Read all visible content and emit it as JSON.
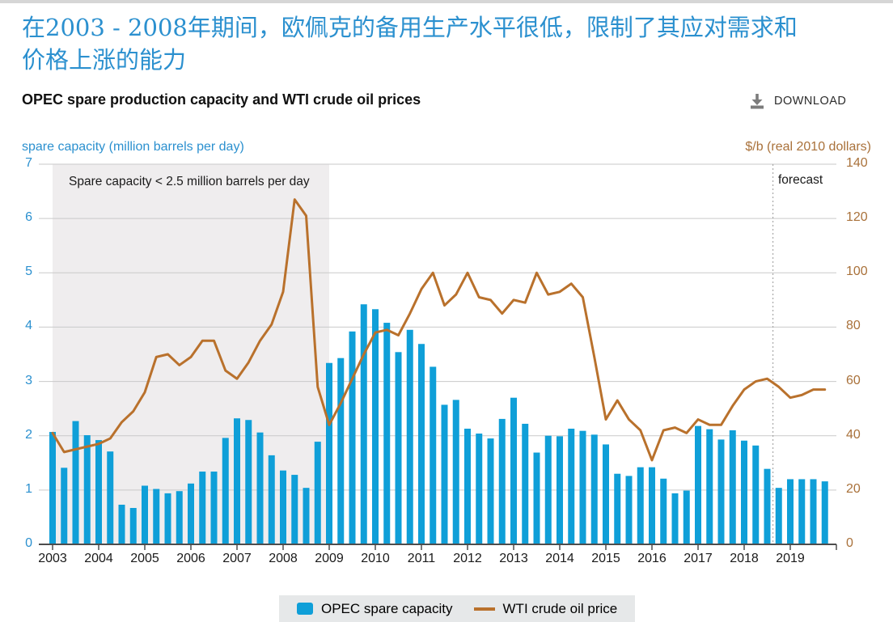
{
  "page": {
    "headline_line1": "在2003 - 2008年期间，欧佩克的备用生产水平很低，限制了其应对需求和",
    "headline_line2": "价格上涨的能力"
  },
  "chart_header": {
    "title": "OPEC spare production capacity and WTI crude oil prices",
    "download_label": "DOWNLOAD"
  },
  "annotations": {
    "shaded_label": "Spare capacity < 2.5 million barrels per day",
    "forecast_label": "forecast"
  },
  "legend": {
    "bar_label": "OPEC spare capacity",
    "line_label": "WTI crude oil price"
  },
  "colors": {
    "bar": "#0f9fd8",
    "line": "#b9712c",
    "headline_blue": "#2b90cf",
    "right_axis_orange": "#a9713a",
    "grid": "#c9c9c9",
    "shade": "#efedee",
    "baseline": "#4d4d4d",
    "forecast_divider": "#9a9a9a",
    "legend_bg": "#e6e8e9",
    "download_icon": "#7c7c7c"
  },
  "chart_data": {
    "type": "bar",
    "title": "OPEC spare production capacity and WTI crude oil prices",
    "x_years": [
      2003,
      2004,
      2005,
      2006,
      2007,
      2008,
      2009,
      2010,
      2011,
      2012,
      2013,
      2014,
      2015,
      2016,
      2017,
      2018,
      2019
    ],
    "quarters_per_year": 4,
    "left_axis": {
      "label": "spare capacity (million barrels per day)",
      "range": [
        0,
        7
      ],
      "ticks": [
        0,
        1,
        2,
        3,
        4,
        5,
        6,
        7
      ]
    },
    "right_axis": {
      "label": "$/b (real 2010 dollars)",
      "range": [
        0,
        140
      ],
      "ticks": [
        0,
        20,
        40,
        60,
        80,
        100,
        120,
        140
      ]
    },
    "grid": true,
    "legend_position": "bottom",
    "shaded_region": {
      "from_year": 2003,
      "to_year": 2009,
      "label": "Spare capacity < 2.5 million barrels per day"
    },
    "forecast_starts_at": "2018-Q4",
    "series": [
      {
        "name": "OPEC spare capacity",
        "type": "bar",
        "axis": "left",
        "unit": "million barrels per day",
        "values": [
          2.07,
          1.41,
          2.27,
          2.01,
          1.92,
          1.71,
          0.73,
          0.67,
          1.08,
          1.02,
          0.94,
          0.98,
          1.12,
          1.34,
          1.34,
          1.96,
          2.32,
          2.29,
          2.06,
          1.64,
          1.36,
          1.28,
          1.04,
          1.89,
          3.34,
          3.43,
          3.92,
          4.42,
          4.33,
          4.08,
          3.54,
          3.95,
          3.69,
          3.27,
          2.57,
          2.66,
          2.13,
          2.04,
          1.95,
          2.31,
          2.7,
          2.22,
          1.69,
          2.0,
          1.99,
          2.13,
          2.09,
          2.02,
          1.84,
          1.3,
          1.26,
          1.42,
          1.42,
          1.21,
          0.94,
          0.99,
          2.18,
          2.12,
          1.93,
          2.1,
          1.91,
          1.82,
          1.39,
          1.04,
          1.2,
          1.2,
          1.2,
          1.16
        ]
      },
      {
        "name": "WTI crude oil price",
        "type": "line",
        "axis": "right",
        "unit": "$/b (real 2010 dollars)",
        "values": [
          41,
          34,
          35,
          36,
          37,
          39,
          45,
          49,
          56,
          69,
          70,
          66,
          69,
          75,
          75,
          64,
          61,
          67,
          75,
          81,
          93,
          127,
          121,
          58,
          44,
          52,
          61,
          70,
          78,
          79,
          77,
          85,
          94,
          100,
          88,
          92,
          100,
          91,
          90,
          85,
          90,
          89,
          100,
          92,
          93,
          96,
          91,
          69,
          46,
          53,
          46,
          42,
          31,
          42,
          43,
          41,
          46,
          44,
          44,
          51,
          57,
          60,
          61,
          58,
          54,
          55,
          57,
          57
        ]
      }
    ]
  }
}
